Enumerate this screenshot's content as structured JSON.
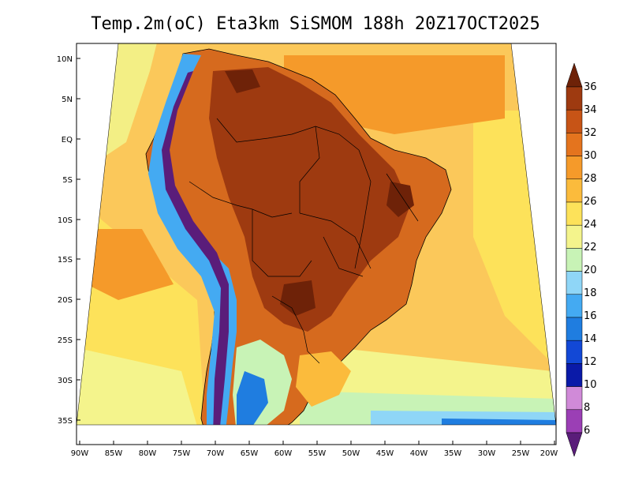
{
  "title": "Temp.2m(oC) Eta3km SiSMOM 188h 20Z17OCT2025",
  "lat_labels": [
    "10N",
    "5N",
    "EQ",
    "5S",
    "10S",
    "15S",
    "20S",
    "25S",
    "30S",
    "35S"
  ],
  "lon_labels": [
    "90W",
    "85W",
    "80W",
    "75W",
    "70W",
    "65W",
    "60W",
    "55W",
    "50W",
    "45W",
    "40W",
    "35W",
    "30W",
    "25W",
    "20W"
  ],
  "colorbar": {
    "labels": [
      "6",
      "8",
      "10",
      "12",
      "14",
      "16",
      "18",
      "20",
      "22",
      "24",
      "26",
      "28",
      "30",
      "32",
      "34",
      "36"
    ],
    "colors": [
      "#5a1d7a",
      "#9b3fb5",
      "#d08ad8",
      "#0a1aa8",
      "#1248d6",
      "#1f7de0",
      "#44aaf2",
      "#8fd6f7",
      "#c8f3b6",
      "#f4f48c",
      "#fde25a",
      "#fbbb3c",
      "#f59a2a",
      "#e4741e",
      "#c75416",
      "#9e3a10",
      "#6e2208"
    ]
  },
  "map": {
    "ocean_color": "#fbc85a",
    "land_color": "#d66a1e"
  }
}
